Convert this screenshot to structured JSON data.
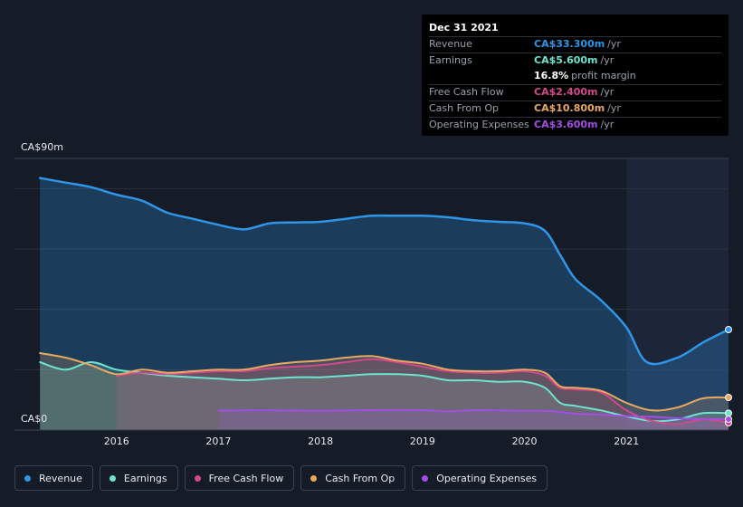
{
  "tooltip": {
    "date": "Dec 31 2021",
    "rows": [
      {
        "label": "Revenue",
        "value": "CA$33.300m",
        "unit": "/yr",
        "color": "#2e95e7"
      },
      {
        "label": "Earnings",
        "value": "CA$5.600m",
        "unit": "/yr",
        "color": "#6de4cf"
      },
      {
        "label": "",
        "value": "16.8%",
        "unit": "profit margin"
      },
      {
        "label": "Free Cash Flow",
        "value": "CA$2.400m",
        "unit": "/yr",
        "color": "#d2488a"
      },
      {
        "label": "Cash From Op",
        "value": "CA$10.800m",
        "unit": "/yr",
        "color": "#e9a860"
      },
      {
        "label": "Operating Expenses",
        "value": "CA$3.600m",
        "unit": "/yr",
        "color": "#a24ee6"
      }
    ]
  },
  "chart_data": {
    "type": "area",
    "ylabel_top": "CA$90m",
    "ylabel_bottom": "CA$0",
    "ylim": [
      0,
      90
    ],
    "xlim": [
      2015.25,
      2022.0
    ],
    "x_ticks": [
      "2016",
      "2017",
      "2018",
      "2019",
      "2020",
      "2021"
    ],
    "x_tick_values": [
      2016,
      2017,
      2018,
      2019,
      2020,
      2021
    ],
    "series": [
      {
        "name": "Revenue",
        "color": "#2e95e7",
        "x": [
          2015.25,
          2015.5,
          2015.75,
          2016.0,
          2016.25,
          2016.5,
          2016.75,
          2017.0,
          2017.25,
          2017.5,
          2017.75,
          2018.0,
          2018.25,
          2018.5,
          2018.75,
          2019.0,
          2019.25,
          2019.5,
          2019.75,
          2020.0,
          2020.2,
          2020.35,
          2020.5,
          2020.75,
          2021.0,
          2021.2,
          2021.5,
          2021.75,
          2022.0
        ],
        "y": [
          83.5,
          82,
          80.5,
          78,
          76,
          72,
          70,
          68,
          66.5,
          68.5,
          68.8,
          69,
          70,
          71,
          71,
          71,
          70.5,
          69.5,
          69,
          68.5,
          66,
          58,
          50,
          43,
          34,
          22.5,
          24,
          29,
          33.3
        ]
      },
      {
        "name": "Earnings",
        "color": "#6de4cf",
        "x": [
          2015.25,
          2015.5,
          2015.75,
          2016.0,
          2016.25,
          2016.5,
          2016.75,
          2017.0,
          2017.25,
          2017.5,
          2017.75,
          2018.0,
          2018.25,
          2018.5,
          2018.75,
          2019.0,
          2019.25,
          2019.5,
          2019.75,
          2020.0,
          2020.2,
          2020.35,
          2020.5,
          2020.75,
          2021.0,
          2021.25,
          2021.5,
          2021.75,
          2022.0
        ],
        "y": [
          22.5,
          20,
          22.5,
          20,
          19,
          18,
          17.5,
          17,
          16.5,
          17,
          17.5,
          17.5,
          18,
          18.5,
          18.5,
          18,
          16.5,
          16.5,
          16,
          16,
          14,
          9,
          8,
          6.5,
          4.5,
          3,
          3.5,
          5.6,
          5.6
        ]
      },
      {
        "name": "Free Cash Flow",
        "color": "#d2488a",
        "x": [
          2016.0,
          2016.25,
          2016.5,
          2016.75,
          2017.0,
          2017.25,
          2017.5,
          2017.75,
          2018.0,
          2018.25,
          2018.5,
          2018.75,
          2019.0,
          2019.25,
          2019.5,
          2019.75,
          2020.0,
          2020.2,
          2020.35,
          2020.5,
          2020.75,
          2021.0,
          2021.25,
          2021.5,
          2021.75,
          2022.0
        ],
        "y": [
          18,
          19,
          18.5,
          19,
          19.5,
          19.5,
          20.5,
          21,
          21.5,
          22.5,
          23.5,
          22.5,
          21,
          19.5,
          19,
          19,
          19.5,
          18,
          14,
          13.5,
          12.5,
          6.5,
          3,
          2,
          3.5,
          2.4
        ]
      },
      {
        "name": "Cash From Op",
        "color": "#e9a860",
        "x": [
          2015.25,
          2015.5,
          2015.75,
          2016.0,
          2016.25,
          2016.5,
          2016.75,
          2017.0,
          2017.25,
          2017.5,
          2017.75,
          2018.0,
          2018.25,
          2018.5,
          2018.75,
          2019.0,
          2019.25,
          2019.5,
          2019.75,
          2020.0,
          2020.2,
          2020.35,
          2020.5,
          2020.75,
          2021.0,
          2021.25,
          2021.5,
          2021.75,
          2022.0
        ],
        "y": [
          25.5,
          24,
          21.5,
          18.5,
          20,
          19,
          19.5,
          20,
          20,
          21.5,
          22.5,
          23,
          24,
          24.5,
          23,
          22,
          20,
          19.5,
          19.5,
          20,
          19,
          14.5,
          14,
          13,
          9,
          6.5,
          7.5,
          10.5,
          10.8
        ]
      },
      {
        "name": "Operating Expenses",
        "color": "#a24ee6",
        "x": [
          2017.0,
          2017.5,
          2018.0,
          2018.5,
          2019.0,
          2019.25,
          2019.5,
          2019.75,
          2020.0,
          2020.25,
          2020.5,
          2020.75,
          2021.0,
          2021.25,
          2021.5,
          2021.75,
          2022.0
        ],
        "y": [
          6.5,
          6.5,
          6.4,
          6.6,
          6.6,
          6.2,
          6.6,
          6.5,
          6.4,
          6.3,
          5.4,
          5.1,
          4.6,
          4.4,
          3.9,
          3.7,
          3.6
        ]
      }
    ],
    "highlight_from": 2021.0
  },
  "legend": [
    {
      "label": "Revenue",
      "color": "#2e95e7"
    },
    {
      "label": "Earnings",
      "color": "#6de4cf"
    },
    {
      "label": "Free Cash Flow",
      "color": "#d2488a"
    },
    {
      "label": "Cash From Op",
      "color": "#e9a860"
    },
    {
      "label": "Operating Expenses",
      "color": "#a24ee6"
    }
  ]
}
